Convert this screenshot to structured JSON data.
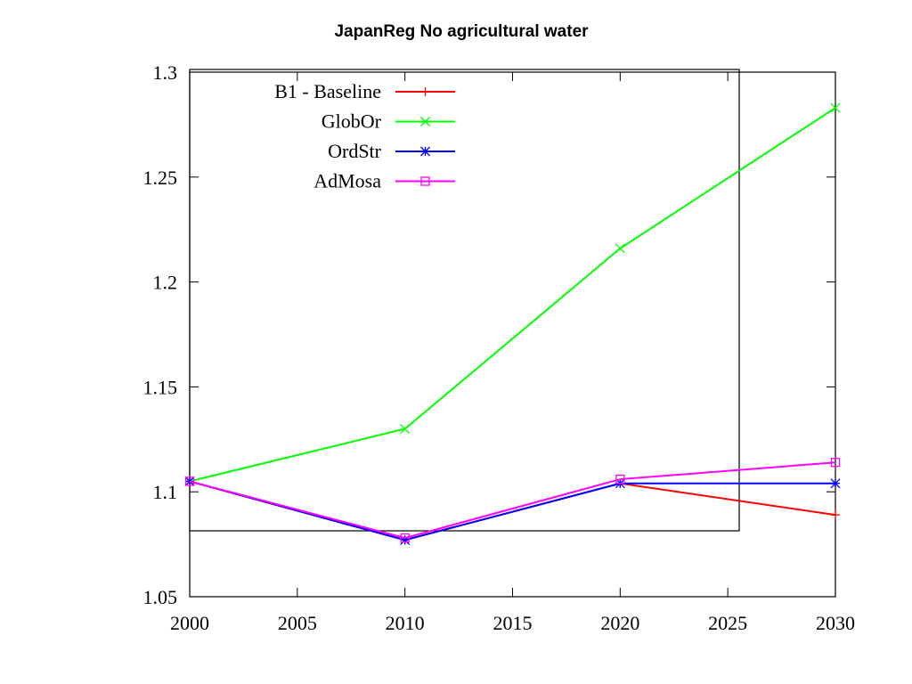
{
  "chart_data": {
    "type": "line",
    "title": "JapanReg No agricultural water",
    "xlabel": "",
    "ylabel": "",
    "xlim": [
      2000,
      2030
    ],
    "ylim": [
      1.05,
      1.3
    ],
    "x_ticks": [
      "2000",
      "2005",
      "2010",
      "2015",
      "2020",
      "2025",
      "2030"
    ],
    "y_ticks": [
      "1.05",
      "1.1",
      "1.15",
      "1.2",
      "1.25",
      "1.3"
    ],
    "legend_position": "top-left",
    "grid": false,
    "x": [
      2000,
      2010,
      2020,
      2030
    ],
    "series": [
      {
        "name": "B1 - Baseline",
        "color": "#ff0000",
        "marker": "plus",
        "values": [
          1.105,
          1.077,
          1.104,
          1.089
        ]
      },
      {
        "name": "GlobOr",
        "color": "#00ff00",
        "marker": "cross",
        "values": [
          1.105,
          1.13,
          1.216,
          1.283
        ]
      },
      {
        "name": "OrdStr",
        "color": "#0000ff",
        "marker": "star",
        "values": [
          1.105,
          1.077,
          1.104,
          1.104
        ]
      },
      {
        "name": "AdMosa",
        "color": "#ff00ff",
        "marker": "square",
        "values": [
          1.105,
          1.078,
          1.106,
          1.114
        ]
      }
    ]
  }
}
